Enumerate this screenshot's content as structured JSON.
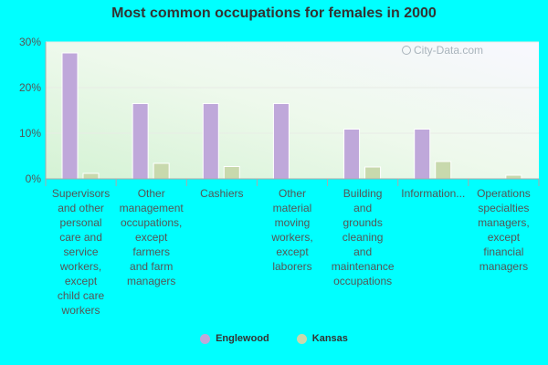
{
  "chart_data": {
    "type": "bar",
    "title": "Most common occupations for females in 2000",
    "categories": [
      "Supervisors and other personal care and service workers, except child care workers",
      "Other management occupations, except farmers and farm managers",
      "Cashiers",
      "Other material moving workers, except laborers",
      "Building and grounds cleaning and maintenance occupations",
      "Information...",
      "Operations specialties managers, except financial managers"
    ],
    "category_lines": [
      [
        "Supervisors",
        "and other",
        "personal",
        "care and",
        "service",
        "workers,",
        "except",
        "child care",
        "workers"
      ],
      [
        "Other",
        "management",
        "occupations,",
        "except",
        "farmers",
        "and farm",
        "managers"
      ],
      [
        "Cashiers"
      ],
      [
        "Other",
        "material",
        "moving",
        "workers,",
        "except",
        "laborers"
      ],
      [
        "Building",
        "and",
        "grounds",
        "cleaning",
        "and",
        "maintenance",
        "occupations"
      ],
      [
        "Information..."
      ],
      [
        "Operations",
        "specialties",
        "managers,",
        "except",
        "financial",
        "managers"
      ]
    ],
    "series": [
      {
        "name": "Englewood",
        "color": "#bfa8da",
        "values": [
          27.6,
          16.5,
          16.5,
          16.5,
          10.9,
          10.9,
          0
        ]
      },
      {
        "name": "Kansas",
        "color": "#c8d9ad",
        "values": [
          1.2,
          3.4,
          2.7,
          0,
          2.6,
          3.8,
          0.8
        ]
      }
    ],
    "ylim": [
      0,
      30
    ],
    "yticks": [
      "0%",
      "10%",
      "20%",
      "30%"
    ],
    "xlabel": "",
    "ylabel": "",
    "grid": true,
    "legend_position": "bottom"
  },
  "watermark": {
    "text": "City-Data.com",
    "icon": "search-icon"
  }
}
